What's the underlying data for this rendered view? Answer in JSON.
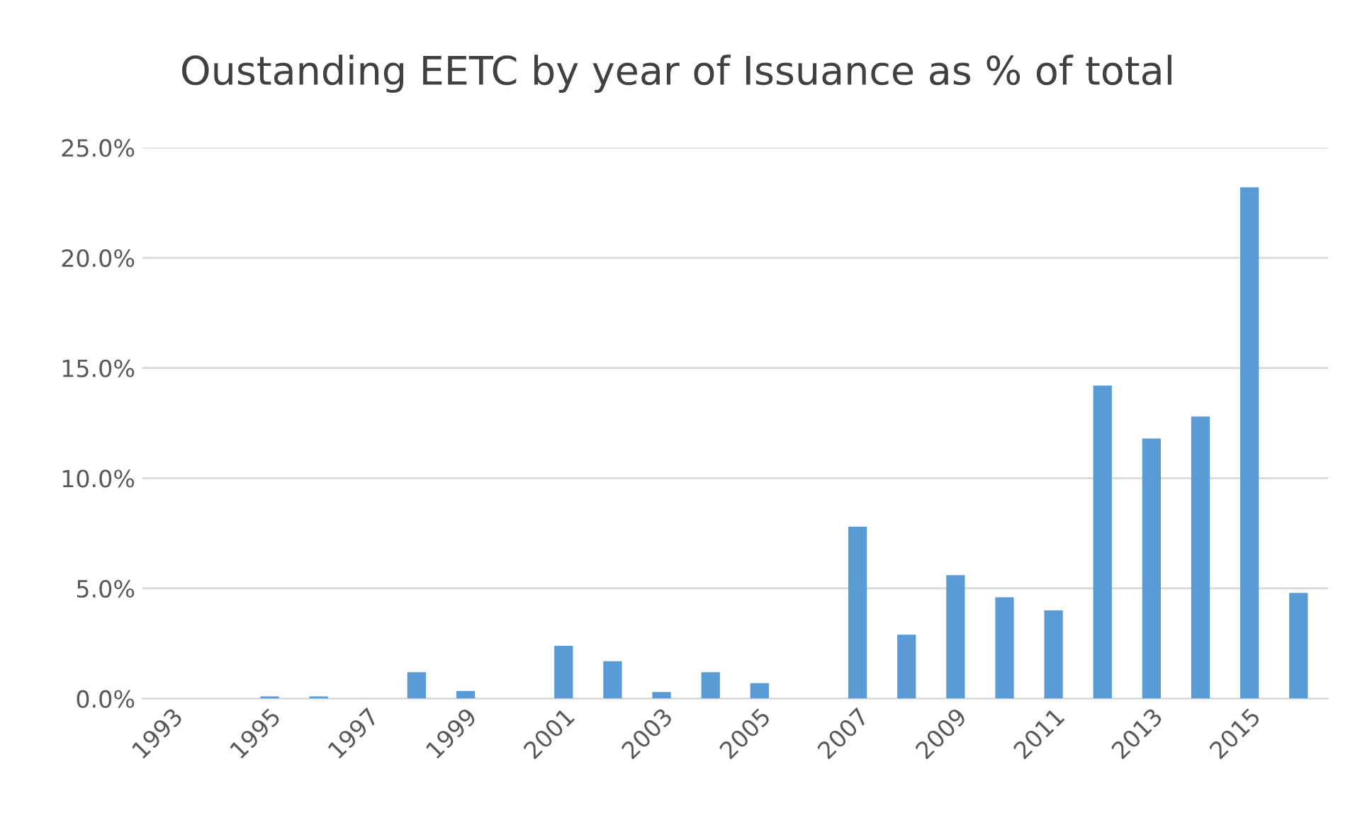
{
  "chart_data": {
    "type": "bar",
    "title": "Oustanding EETC by year of Issuance as % of total",
    "categories": [
      "1993",
      null,
      "1995",
      null,
      "1997",
      null,
      "1999",
      null,
      "2001",
      null,
      "2003",
      null,
      "2005",
      null,
      "2007",
      null,
      "2009",
      null,
      "2011",
      null,
      "2013",
      null,
      "2015",
      null
    ],
    "values": [
      0,
      0,
      0.1,
      0.1,
      0,
      1.2,
      0.35,
      0,
      2.4,
      1.7,
      0.3,
      1.2,
      0.7,
      0,
      7.8,
      2.9,
      5.6,
      4.6,
      4.0,
      14.2,
      11.8,
      12.8,
      23.2,
      4.8
    ],
    "color": "#5b9bd5",
    "ylim": [
      0,
      25
    ],
    "yticks": [
      {
        "value": 0,
        "label": "0.0%"
      },
      {
        "value": 5,
        "label": "5.0%"
      },
      {
        "value": 10,
        "label": "10.0%"
      },
      {
        "value": 15,
        "label": "15.0%"
      },
      {
        "value": 20,
        "label": "20.0%"
      },
      {
        "value": 25,
        "label": "25.0%"
      }
    ],
    "grid": "y"
  }
}
